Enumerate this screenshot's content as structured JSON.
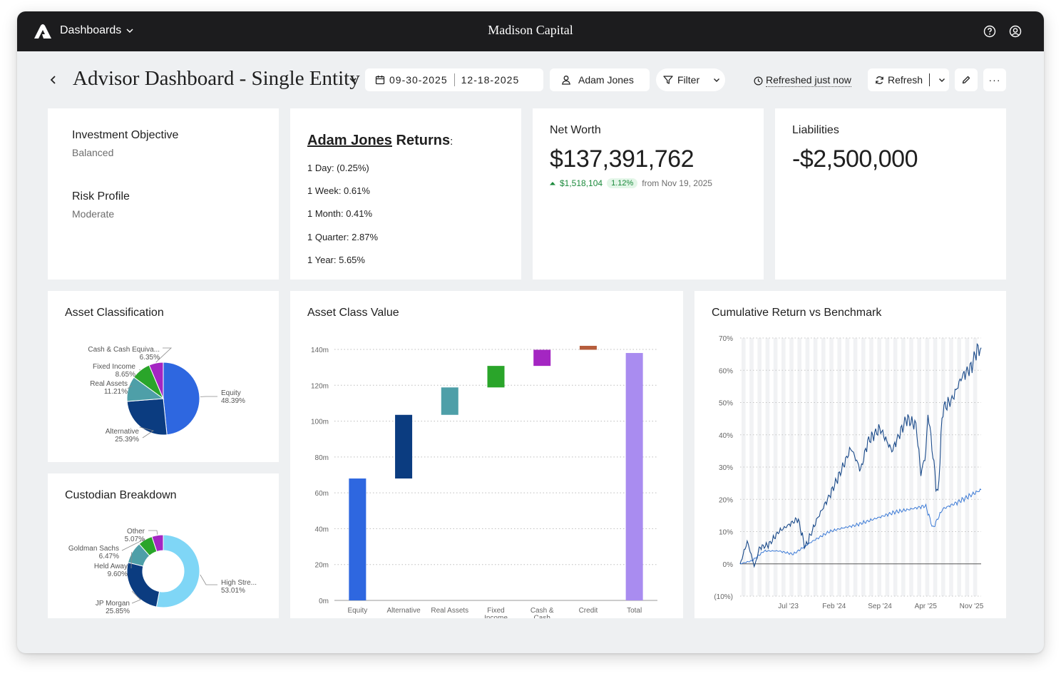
{
  "topbar": {
    "menu_label": "Dashboards",
    "brand": "Madison Capital"
  },
  "header": {
    "title": "Advisor Dashboard - Single Entity",
    "date_start": "09-30-2025",
    "date_end": "12-18-2025",
    "user": "Adam Jones",
    "filter_label": "Filter",
    "refreshed_label": "Refreshed just now",
    "refresh_label": "Refresh",
    "more_label": "···"
  },
  "objective": {
    "investment_label": "Investment Objective",
    "investment_value": "Balanced",
    "risk_label": "Risk Profile",
    "risk_value": "Moderate"
  },
  "returns": {
    "name": "Adam Jones",
    "suffix": "Returns",
    "colon": ":",
    "lines": [
      "1 Day: (0.25%)",
      "1 Week: 0.61%",
      "1 Month: 0.41%",
      "1 Quarter: 2.87%",
      "1 Year: 5.65%"
    ]
  },
  "net_worth": {
    "label": "Net Worth",
    "value": "$137,391,762",
    "change": "$1,518,104",
    "change_pct": "1.12%",
    "since": "from Nov 19, 2025"
  },
  "liabilities": {
    "label": "Liabilities",
    "value": "-$2,500,000"
  },
  "asset_classification": {
    "title": "Asset Classification"
  },
  "custodian_breakdown": {
    "title": "Custodian Breakdown"
  },
  "asset_class_value": {
    "title": "Asset Class Value"
  },
  "cumulative_return": {
    "title": "Cumulative Return vs Benchmark"
  },
  "colors": {
    "equity": "#2e67e0",
    "alternative": "#0b3c80",
    "real_assets": "#4e9fa8",
    "fixed_income": "#2aa52a",
    "cash": "#a426c2",
    "credit": "#b65d3c",
    "total": "#a98cf0",
    "high_street": "#7fd6f6",
    "portfolio_line": "#1a4a8a",
    "benchmark_line": "#3d7bd6"
  },
  "chart_data": [
    {
      "id": "asset-classification",
      "type": "pie",
      "labels": [
        "Equity",
        "Alternative",
        "Real Assets",
        "Fixed Income",
        "Cash & Cash Equiva..."
      ],
      "values": [
        48.39,
        25.39,
        11.21,
        8.65,
        6.35
      ],
      "value_labels": [
        "48.39%",
        "25.39%",
        "11.21%",
        "8.65%",
        "6.35%"
      ]
    },
    {
      "id": "custodian-breakdown",
      "type": "pie",
      "donut": true,
      "labels": [
        "High Stre...",
        "JP Morgan",
        "Held Away",
        "Goldman Sachs",
        "Other"
      ],
      "values": [
        53.01,
        25.85,
        9.6,
        6.47,
        5.07
      ],
      "value_labels": [
        "53.01%",
        "25.85%",
        "9.60%",
        "6.47%",
        "5.07%"
      ]
    },
    {
      "id": "asset-class-value",
      "type": "bar",
      "subtype": "waterfall",
      "categories": [
        "Equity",
        "Alternative",
        "Real Assets",
        "Fixed Income",
        "Cash & Cash Equivalent",
        "Credit",
        "Total"
      ],
      "values": [
        68,
        35.5,
        15.3,
        12,
        9,
        2.2,
        138
      ],
      "ylim": [
        0,
        140
      ],
      "yticks": [
        "0m",
        "20m",
        "40m",
        "60m",
        "80m",
        "100m",
        "120m",
        "140m"
      ]
    },
    {
      "id": "cumulative-return",
      "type": "line",
      "series": [],
      "anchors": {
        "portfolio": [
          [
            0,
            0
          ],
          [
            0.03,
            7
          ],
          [
            0.06,
            -1
          ],
          [
            0.08,
            5
          ],
          [
            0.12,
            6
          ],
          [
            0.16,
            10
          ],
          [
            0.2,
            12
          ],
          [
            0.24,
            14
          ],
          [
            0.27,
            5
          ],
          [
            0.32,
            14
          ],
          [
            0.37,
            21
          ],
          [
            0.42,
            29
          ],
          [
            0.46,
            36
          ],
          [
            0.5,
            29
          ],
          [
            0.53,
            38
          ],
          [
            0.58,
            42
          ],
          [
            0.63,
            35
          ],
          [
            0.69,
            45
          ],
          [
            0.73,
            43
          ],
          [
            0.75,
            28
          ],
          [
            0.77,
            34
          ],
          [
            0.78,
            47
          ],
          [
            0.82,
            20
          ],
          [
            0.84,
            48
          ],
          [
            0.88,
            51
          ],
          [
            0.92,
            58
          ],
          [
            0.96,
            61
          ],
          [
            0.98,
            66
          ],
          [
            1,
            67
          ]
        ],
        "benchmark": [
          [
            0,
            0
          ],
          [
            0.05,
            1
          ],
          [
            0.1,
            4
          ],
          [
            0.16,
            4
          ],
          [
            0.22,
            3
          ],
          [
            0.3,
            7
          ],
          [
            0.37,
            10
          ],
          [
            0.42,
            11
          ],
          [
            0.48,
            12
          ],
          [
            0.56,
            14
          ],
          [
            0.64,
            16
          ],
          [
            0.71,
            17
          ],
          [
            0.77,
            18
          ],
          [
            0.8,
            11
          ],
          [
            0.84,
            17
          ],
          [
            0.9,
            19
          ],
          [
            0.95,
            21
          ],
          [
            1,
            23
          ]
        ]
      },
      "xticks": [
        "Jul '23",
        "Feb '24",
        "Sep '24",
        "Apr '25",
        "Nov '25"
      ],
      "yticks": [
        "(10%)",
        "0%",
        "10%",
        "20%",
        "30%",
        "40%",
        "50%",
        "60%",
        "70%"
      ],
      "ylim": [
        -10,
        70
      ]
    }
  ]
}
